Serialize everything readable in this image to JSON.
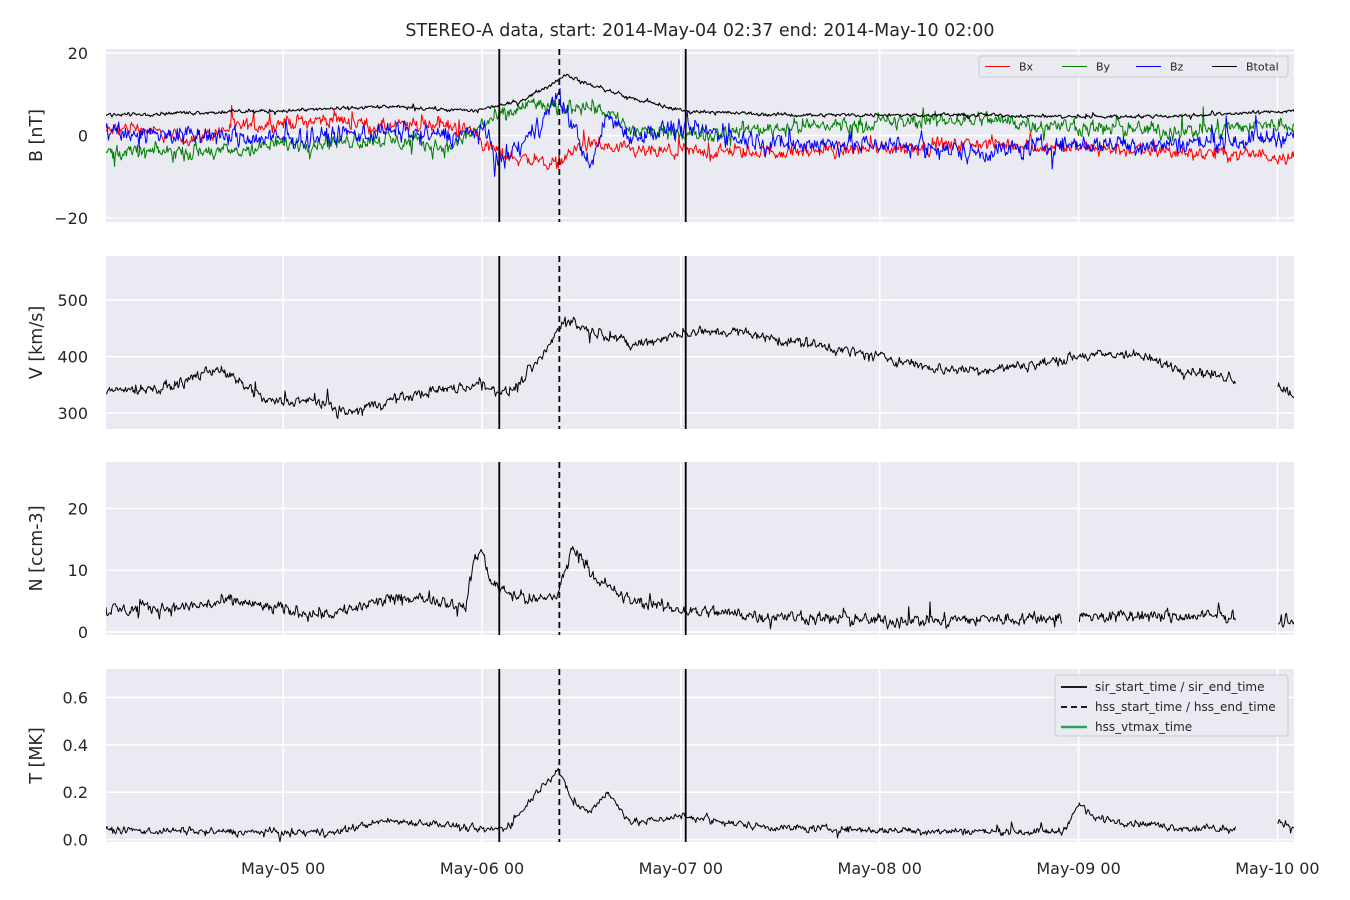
{
  "title": "STEREO-A data, start: 2014-May-04 02:37  end: 2014-May-10 02:00",
  "colors": {
    "bg": "#eaeaf2",
    "grid": "#ffffff",
    "Bx": "#ff0000",
    "By": "#008000",
    "Bz": "#0000ff",
    "Btotal": "#000000",
    "vtmax": "#2ca05a"
  },
  "chart_data": {
    "type": "line",
    "grid": true,
    "xaxis": {
      "range": [
        "2014-05-04 02:37",
        "2014-05-10 02:00"
      ],
      "ticks": [
        {
          "t": "2014-05-05 00:00",
          "label": "May-05 00"
        },
        {
          "t": "2014-05-06 00:00",
          "label": "May-06 00"
        },
        {
          "t": "2014-05-07 00:00",
          "label": "May-07 00"
        },
        {
          "t": "2014-05-08 00:00",
          "label": "May-08 00"
        },
        {
          "t": "2014-05-09 00:00",
          "label": "May-09 00"
        },
        {
          "t": "2014-05-10 00:00",
          "label": "May-10 00"
        }
      ]
    },
    "events": {
      "sir_start_time": "2014-05-06 02:05",
      "hss_start_time": "2014-05-06 09:20",
      "sir_end_time": "2014-05-07 00:35"
    },
    "panels": [
      {
        "id": "B",
        "ylabel": "B [nT]",
        "ylim": [
          -21,
          21
        ],
        "yticks": [
          {
            "v": 20,
            "label": "20"
          },
          {
            "v": 0,
            "label": "0"
          },
          {
            "v": -20,
            "label": "−20"
          }
        ],
        "legend": "top-right",
        "series": [
          {
            "name": "Bx",
            "color": "#ff0000",
            "noise": 1.3,
            "pts": [
              [
                "05-04 02:37",
                1
              ],
              [
                "05-04 06",
                2
              ],
              [
                "05-04 12",
                -1
              ],
              [
                "05-04 18",
                2
              ],
              [
                "05-05 00",
                3
              ],
              [
                "05-05 06",
                4
              ],
              [
                "05-05 12",
                2
              ],
              [
                "05-05 18",
                3
              ],
              [
                "05-05 23",
                1
              ],
              [
                "05-06 00",
                -2
              ],
              [
                "05-06 03",
                -5
              ],
              [
                "05-06 06",
                -6
              ],
              [
                "05-06 09",
                -7
              ],
              [
                "05-06 12",
                -2
              ],
              [
                "05-06 15",
                -3
              ],
              [
                "05-06 18",
                -4
              ],
              [
                "05-07 00",
                -4
              ],
              [
                "05-07 12",
                -4
              ],
              [
                "05-08 00",
                -3
              ],
              [
                "05-08 12",
                -2
              ],
              [
                "05-09 00",
                -3
              ],
              [
                "05-09 12",
                -4
              ],
              [
                "05-10 02",
                -5
              ]
            ]
          },
          {
            "name": "By",
            "color": "#008000",
            "noise": 1.5,
            "pts": [
              [
                "05-04 02:37",
                -4
              ],
              [
                "05-04 12",
                -4
              ],
              [
                "05-04 18",
                -4
              ],
              [
                "05-05 00",
                -2
              ],
              [
                "05-05 12",
                -1
              ],
              [
                "05-05 20",
                -3
              ],
              [
                "05-05 23",
                1
              ],
              [
                "05-06 00",
                3
              ],
              [
                "05-06 03",
                5
              ],
              [
                "05-06 06",
                8
              ],
              [
                "05-06 09",
                6
              ],
              [
                "05-06 12",
                8
              ],
              [
                "05-06 15",
                6
              ],
              [
                "05-06 18",
                1
              ],
              [
                "05-07 00",
                0
              ],
              [
                "05-07 12",
                2
              ],
              [
                "05-08 00",
                3
              ],
              [
                "05-08 12",
                4
              ],
              [
                "05-09 00",
                2
              ],
              [
                "05-09 12",
                1
              ],
              [
                "05-10 02",
                3
              ]
            ]
          },
          {
            "name": "Bz",
            "color": "#0000ff",
            "noise": 1.8,
            "pts": [
              [
                "05-04 02:37",
                1
              ],
              [
                "05-04 12",
                0
              ],
              [
                "05-05 00",
                -1
              ],
              [
                "05-05 12",
                1
              ],
              [
                "05-05 20",
                0
              ],
              [
                "05-06 00",
                1
              ],
              [
                "05-06 02",
                -6
              ],
              [
                "05-06 05",
                -2
              ],
              [
                "05-06 07",
                3
              ],
              [
                "05-06 09",
                10
              ],
              [
                "05-06 11",
                2
              ],
              [
                "05-06 13",
                -8
              ],
              [
                "05-06 15",
                5
              ],
              [
                "05-06 18",
                0
              ],
              [
                "05-07 00",
                2
              ],
              [
                "05-07 12",
                -2
              ],
              [
                "05-08 00",
                -2
              ],
              [
                "05-08 12",
                -4
              ],
              [
                "05-09 00",
                -2
              ],
              [
                "05-09 12",
                -2
              ],
              [
                "05-10 02",
                0
              ]
            ]
          },
          {
            "name": "Btotal",
            "color": "#000000",
            "noise": 0.35,
            "pts": [
              [
                "05-04 02:37",
                5
              ],
              [
                "05-04 12",
                5.5
              ],
              [
                "05-05 00",
                6
              ],
              [
                "05-05 12",
                7
              ],
              [
                "05-05 23",
                6
              ],
              [
                "05-06 01",
                7
              ],
              [
                "05-06 04",
                8
              ],
              [
                "05-06 08",
                12
              ],
              [
                "05-06 10",
                15
              ],
              [
                "05-06 12",
                13
              ],
              [
                "05-06 15",
                11
              ],
              [
                "05-06 18",
                9
              ],
              [
                "05-07 00",
                6
              ],
              [
                "05-07 12",
                5
              ],
              [
                "05-08 00",
                5
              ],
              [
                "05-08 12",
                5
              ],
              [
                "05-09 00",
                4.5
              ],
              [
                "05-09 12",
                4.8
              ],
              [
                "05-10 02",
                6
              ]
            ]
          }
        ]
      },
      {
        "id": "V",
        "ylabel": "V [km/s]",
        "ylim": [
          272,
          578
        ],
        "yticks": [
          {
            "v": 500,
            "label": "500"
          },
          {
            "v": 400,
            "label": "400"
          },
          {
            "v": 300,
            "label": "300"
          }
        ],
        "gaps": [
          [
            "05-09 19",
            "05-10 00"
          ]
        ],
        "series": [
          {
            "name": "V",
            "color": "#000000",
            "noise": 7,
            "pts": [
              [
                "05-04 02:37",
                340
              ],
              [
                "05-04 10",
                345
              ],
              [
                "05-04 16",
                380
              ],
              [
                "05-04 22",
                320
              ],
              [
                "05-05 04",
                320
              ],
              [
                "05-05 08",
                300
              ],
              [
                "05-05 12",
                320
              ],
              [
                "05-05 18",
                340
              ],
              [
                "05-06 00",
                350
              ],
              [
                "05-06 03",
                335
              ],
              [
                "05-06 06",
                380
              ],
              [
                "05-06 08",
                420
              ],
              [
                "05-06 10",
                470
              ],
              [
                "05-06 12",
                450
              ],
              [
                "05-06 15",
                440
              ],
              [
                "05-06 18",
                420
              ],
              [
                "05-07 00",
                440
              ],
              [
                "05-07 06",
                445
              ],
              [
                "05-07 12",
                430
              ],
              [
                "05-07 18",
                415
              ],
              [
                "05-08 00",
                400
              ],
              [
                "05-08 06",
                380
              ],
              [
                "05-08 12",
                375
              ],
              [
                "05-08 18",
                385
              ],
              [
                "05-09 00",
                400
              ],
              [
                "05-09 06",
                405
              ],
              [
                "05-09 12",
                380
              ],
              [
                "05-09 19",
                360
              ],
              [
                "05-10 00",
                350
              ],
              [
                "05-10 02",
                330
              ]
            ]
          }
        ]
      },
      {
        "id": "N",
        "ylabel": "N [ccm-3]",
        "ylim": [
          -0.5,
          27.5
        ],
        "yticks": [
          {
            "v": 20,
            "label": "20"
          },
          {
            "v": 10,
            "label": "10"
          },
          {
            "v": 0,
            "label": "0"
          }
        ],
        "gaps": [
          [
            "05-08 22",
            "05-09 00"
          ],
          [
            "05-09 19",
            "05-10 00"
          ]
        ],
        "series": [
          {
            "name": "N",
            "color": "#000000",
            "noise": 0.8,
            "pts": [
              [
                "05-04 02:37",
                3.5
              ],
              [
                "05-04 12",
                4
              ],
              [
                "05-04 18",
                5
              ],
              [
                "05-05 00",
                3.5
              ],
              [
                "05-05 06",
                3
              ],
              [
                "05-05 12",
                5
              ],
              [
                "05-05 18",
                5.5
              ],
              [
                "05-05 22",
                4
              ],
              [
                "05-05 23",
                12
              ],
              [
                "05-06 00",
                13
              ],
              [
                "05-06 01",
                8
              ],
              [
                "05-06 04",
                6
              ],
              [
                "05-06 06",
                5
              ],
              [
                "05-06 09",
                6
              ],
              [
                "05-06 11",
                14
              ],
              [
                "05-06 13",
                10
              ],
              [
                "05-06 15",
                7
              ],
              [
                "05-06 18",
                5
              ],
              [
                "05-07 00",
                3.5
              ],
              [
                "05-07 06",
                3
              ],
              [
                "05-07 12",
                2.5
              ],
              [
                "05-08 00",
                1.8
              ],
              [
                "05-08 12",
                2
              ],
              [
                "05-09 00",
                2.5
              ],
              [
                "05-09 12",
                2.5
              ],
              [
                "05-09 19",
                2.5
              ],
              [
                "05-10 00",
                2
              ],
              [
                "05-10 02",
                1.8
              ]
            ]
          }
        ]
      },
      {
        "id": "T",
        "ylabel": "T [MK]",
        "ylim": [
          -0.01,
          0.72
        ],
        "yticks": [
          {
            "v": 0.6,
            "label": "0.6"
          },
          {
            "v": 0.4,
            "label": "0.4"
          },
          {
            "v": 0.2,
            "label": "0.2"
          },
          {
            "v": 0.0,
            "label": "0.0"
          }
        ],
        "legend": "top-right",
        "gaps": [
          [
            "05-09 19",
            "05-10 00"
          ]
        ],
        "series": [
          {
            "name": "T",
            "color": "#000000",
            "noise": 0.012,
            "pts": [
              [
                "05-04 02:37",
                0.04
              ],
              [
                "05-05 00",
                0.03
              ],
              [
                "05-05 06",
                0.03
              ],
              [
                "05-05 12",
                0.08
              ],
              [
                "05-05 18",
                0.07
              ],
              [
                "05-06 00",
                0.04
              ],
              [
                "05-06 03",
                0.05
              ],
              [
                "05-06 06",
                0.18
              ],
              [
                "05-06 09",
                0.3
              ],
              [
                "05-06 11",
                0.15
              ],
              [
                "05-06 13",
                0.12
              ],
              [
                "05-06 15",
                0.2
              ],
              [
                "05-06 18",
                0.07
              ],
              [
                "05-07 00",
                0.1
              ],
              [
                "05-07 06",
                0.07
              ],
              [
                "05-07 12",
                0.05
              ],
              [
                "05-08 00",
                0.04
              ],
              [
                "05-08 12",
                0.035
              ],
              [
                "05-08 22",
                0.035
              ],
              [
                "05-09 00",
                0.15
              ],
              [
                "05-09 02",
                0.09
              ],
              [
                "05-09 12",
                0.05
              ],
              [
                "05-09 19",
                0.04
              ],
              [
                "05-10 00",
                0.08
              ],
              [
                "05-10 02",
                0.05
              ]
            ]
          }
        ]
      }
    ],
    "legends": {
      "B": [
        "Bx",
        "By",
        "Bz",
        "Btotal"
      ],
      "events": [
        {
          "label": "sir_start_time / sir_end_time",
          "style": "solid"
        },
        {
          "label": "hss_start_time / hss_end_time",
          "style": "dashed"
        },
        {
          "label": "hss_vtmax_time",
          "style": "green"
        }
      ]
    }
  }
}
